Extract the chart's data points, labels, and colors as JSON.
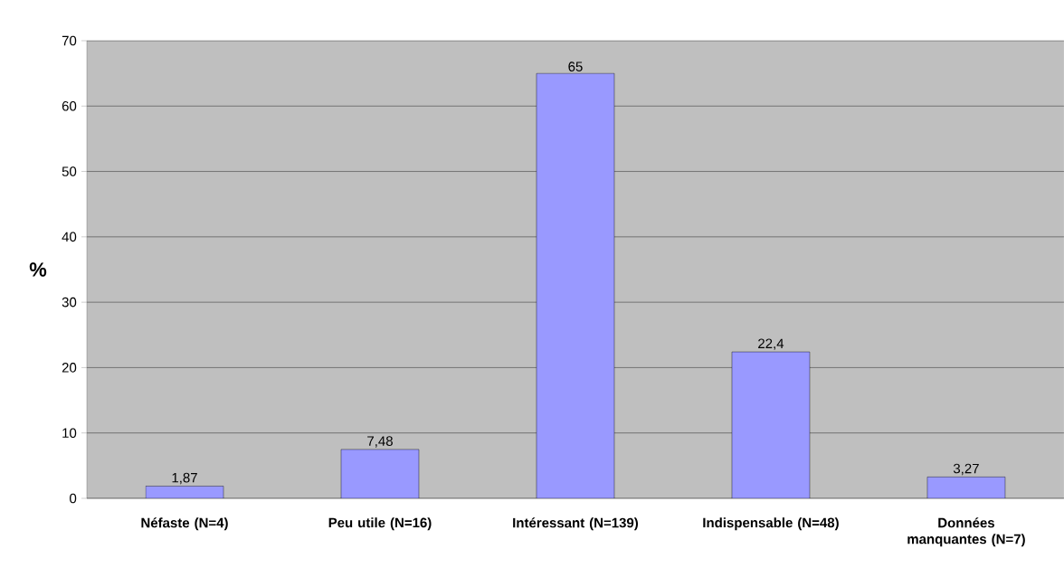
{
  "chart_data": {
    "type": "bar",
    "ylabel": "%",
    "categories": [
      "Néfaste (N=4)",
      "Peu utile (N=16)",
      "Intéressant (N=139)",
      "Indispensable (N=48)",
      "Données manquantes (N=7)"
    ],
    "values": [
      1.87,
      7.48,
      65,
      22.4,
      3.27
    ],
    "value_labels": [
      "1,87",
      "7,48",
      "65",
      "22,4",
      "3,27"
    ],
    "color": "#9999ff",
    "ylim": [
      0,
      70
    ],
    "yticks": [
      0,
      10,
      20,
      30,
      40,
      50,
      60,
      70
    ],
    "grid": "y"
  }
}
